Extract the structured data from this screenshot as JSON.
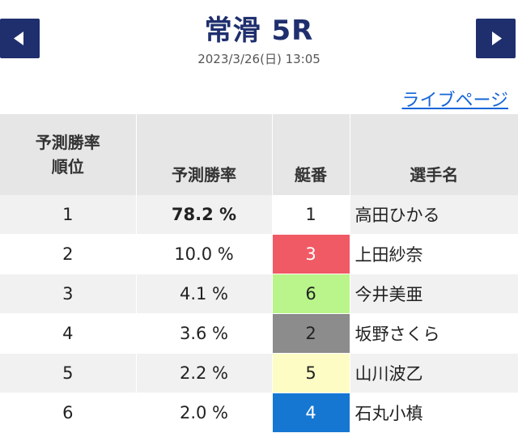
{
  "header": {
    "title": "常滑 5R",
    "datetime": "2023/3/26(日) 13:05",
    "prev_icon": "triangle-left-icon",
    "next_icon": "triangle-right-icon",
    "nav_color": "#1f2f6e"
  },
  "live_link": "ライブページ",
  "table": {
    "headers": {
      "rank_line1": "予測勝率",
      "rank_line2": "順位",
      "prob": "予測勝率",
      "boat": "艇番",
      "name": "選手名"
    },
    "rows": [
      {
        "rank": "1",
        "prob": "78.2 %",
        "boat": "1",
        "name": "高田ひかる",
        "boat_bg": "#ffffff",
        "boat_fg": "#222222"
      },
      {
        "rank": "2",
        "prob": "10.0 %",
        "boat": "3",
        "name": "上田紗奈",
        "boat_bg": "#f05a64",
        "boat_fg": "#ffffff"
      },
      {
        "rank": "3",
        "prob": "4.1 %",
        "boat": "6",
        "name": "今井美亜",
        "boat_bg": "#b9f58a",
        "boat_fg": "#222222"
      },
      {
        "rank": "4",
        "prob": "3.6 %",
        "boat": "2",
        "name": "坂野さくら",
        "boat_bg": "#8c8c8c",
        "boat_fg": "#222222"
      },
      {
        "rank": "5",
        "prob": "2.2 %",
        "boat": "5",
        "name": "山川波乙",
        "boat_bg": "#fdfcc4",
        "boat_fg": "#222222"
      },
      {
        "rank": "6",
        "prob": "2.0 %",
        "boat": "4",
        "name": "石丸小槙",
        "boat_bg": "#1577d2",
        "boat_fg": "#ffffff"
      }
    ]
  }
}
